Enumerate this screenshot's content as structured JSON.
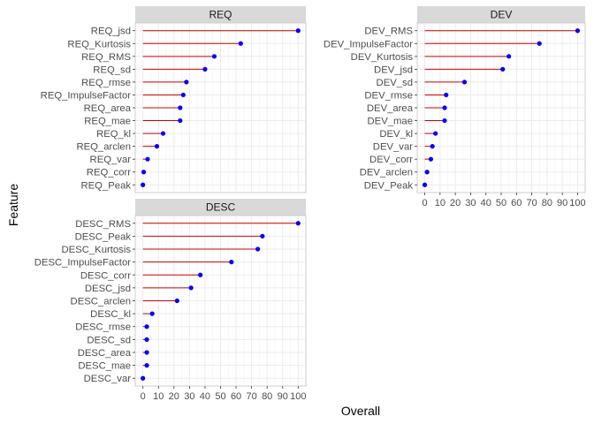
{
  "chart_data": {
    "type": "lollipop",
    "xlabel": "Overall",
    "ylabel": "Feature",
    "xlim": [
      0,
      100
    ],
    "x_ticks": [
      0,
      10,
      20,
      30,
      40,
      50,
      60,
      70,
      80,
      90,
      100
    ],
    "grid": true,
    "colors": {
      "segment": "#cc0000",
      "point": "#0000ff",
      "strip_bg": "#d9d9d9",
      "grid": "#ebebeb"
    },
    "panels": [
      {
        "title": "REQ",
        "features": [
          {
            "name": "REQ_jsd",
            "value": 100
          },
          {
            "name": "REQ_Kurtosis",
            "value": 63
          },
          {
            "name": "REQ_RMS",
            "value": 46
          },
          {
            "name": "REQ_sd",
            "value": 40
          },
          {
            "name": "REQ_rmse",
            "value": 28
          },
          {
            "name": "REQ_ImpulseFactor",
            "value": 26
          },
          {
            "name": "REQ_area",
            "value": 24
          },
          {
            "name": "REQ_mae",
            "value": 24
          },
          {
            "name": "REQ_kl",
            "value": 13
          },
          {
            "name": "REQ_arclen",
            "value": 9
          },
          {
            "name": "REQ_var",
            "value": 3
          },
          {
            "name": "REQ_corr",
            "value": 0.5
          },
          {
            "name": "REQ_Peak",
            "value": 0
          }
        ]
      },
      {
        "title": "DEV",
        "features": [
          {
            "name": "DEV_RMS",
            "value": 100
          },
          {
            "name": "DEV_ImpulseFactor",
            "value": 75
          },
          {
            "name": "DEV_Kurtosis",
            "value": 55
          },
          {
            "name": "DEV_jsd",
            "value": 51
          },
          {
            "name": "DEV_sd",
            "value": 26
          },
          {
            "name": "DEV_rmse",
            "value": 14
          },
          {
            "name": "DEV_area",
            "value": 13
          },
          {
            "name": "DEV_mae",
            "value": 13
          },
          {
            "name": "DEV_kl",
            "value": 7
          },
          {
            "name": "DEV_var",
            "value": 5
          },
          {
            "name": "DEV_corr",
            "value": 4
          },
          {
            "name": "DEV_arclen",
            "value": 1.5
          },
          {
            "name": "DEV_Peak",
            "value": 0
          }
        ]
      },
      {
        "title": "DESC",
        "features": [
          {
            "name": "DESC_RMS",
            "value": 100
          },
          {
            "name": "DESC_Peak",
            "value": 77
          },
          {
            "name": "DESC_Kurtosis",
            "value": 74
          },
          {
            "name": "DESC_ImpulseFactor",
            "value": 57
          },
          {
            "name": "DESC_corr",
            "value": 37
          },
          {
            "name": "DESC_jsd",
            "value": 31
          },
          {
            "name": "DESC_arclen",
            "value": 22
          },
          {
            "name": "DESC_kl",
            "value": 6
          },
          {
            "name": "DESC_rmse",
            "value": 2.5
          },
          {
            "name": "DESC_sd",
            "value": 2.5
          },
          {
            "name": "DESC_area",
            "value": 2.5
          },
          {
            "name": "DESC_mae",
            "value": 2.5
          },
          {
            "name": "DESC_var",
            "value": 0
          }
        ]
      }
    ]
  }
}
